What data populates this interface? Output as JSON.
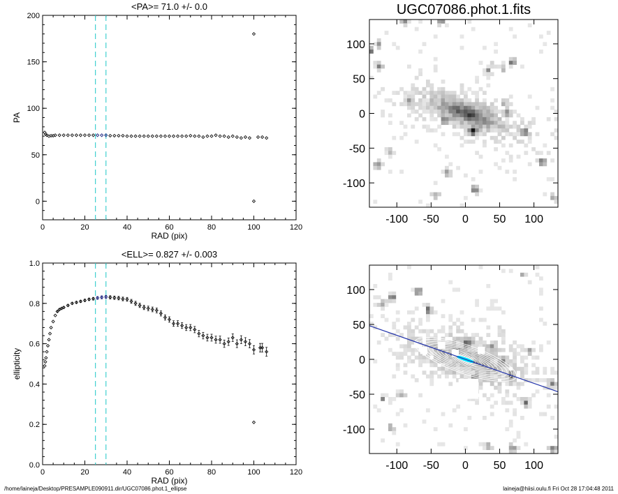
{
  "colors": {
    "axis": "#000000",
    "marker": "#111111",
    "fit_range": "#1a237e",
    "guide": "#40d0d0",
    "major_axis": "#2233aa",
    "ellipse_center": "#00e5ff"
  },
  "footer": {
    "path": "/home/laineja/Desktop/PRESAMPLE090911.dir/UGC07086.phot.1_ellipse",
    "stamp": "laineja@hiisi.oulu.fi  Fri Oct 28 17:04:48 2011"
  },
  "chart_data": [
    {
      "id": "pa-profile",
      "type": "scatter",
      "title": "<PA>=  71.0 +/-   0.0",
      "xlabel": "RAD (pix)",
      "ylabel": "PA",
      "xlim": [
        0,
        120
      ],
      "ylim": [
        -20,
        200
      ],
      "xticks": [
        "0",
        "20",
        "40",
        "60",
        "80",
        "100",
        "120"
      ],
      "yticks": [
        "0",
        "50",
        "100",
        "150",
        "200"
      ],
      "guides_x": [
        25,
        30
      ],
      "fit_range": [
        25,
        30
      ],
      "outliers": [
        {
          "x": 100,
          "y": 180
        },
        {
          "x": 100,
          "y": 0
        }
      ],
      "series": [
        {
          "name": "PA",
          "points": [
            [
              1,
              74
            ],
            [
              1.5,
              72
            ],
            [
              2,
              71
            ],
            [
              3,
              70
            ],
            [
              4,
              70.5
            ],
            [
              5,
              70.5
            ],
            [
              6,
              71
            ],
            [
              8,
              71
            ],
            [
              10,
              71
            ],
            [
              12,
              71
            ],
            [
              14,
              71
            ],
            [
              16,
              71
            ],
            [
              18,
              71
            ],
            [
              20,
              71
            ],
            [
              22,
              71
            ],
            [
              24,
              71
            ],
            [
              26,
              71
            ],
            [
              28,
              71
            ],
            [
              30,
              71
            ],
            [
              32,
              70.5
            ],
            [
              34,
              70.5
            ],
            [
              36,
              70.5
            ],
            [
              38,
              70.5
            ],
            [
              40,
              70
            ],
            [
              42,
              70
            ],
            [
              44,
              70
            ],
            [
              46,
              70
            ],
            [
              48,
              70
            ],
            [
              50,
              70
            ],
            [
              52,
              70
            ],
            [
              54,
              70
            ],
            [
              56,
              70
            ],
            [
              58,
              70
            ],
            [
              60,
              70
            ],
            [
              62,
              70
            ],
            [
              64,
              70
            ],
            [
              66,
              70
            ],
            [
              68,
              70
            ],
            [
              70,
              70.5
            ],
            [
              72,
              70
            ],
            [
              74,
              70
            ],
            [
              76,
              69
            ],
            [
              78,
              70
            ],
            [
              80,
              70
            ],
            [
              82,
              71
            ],
            [
              84,
              70
            ],
            [
              86,
              70
            ],
            [
              88,
              69
            ],
            [
              90,
              70
            ],
            [
              92,
              69
            ],
            [
              94,
              68
            ],
            [
              96,
              69
            ],
            [
              98,
              68
            ],
            [
              102,
              69
            ],
            [
              104,
              69
            ],
            [
              106,
              68
            ]
          ]
        }
      ]
    },
    {
      "id": "ellipticity-profile",
      "type": "scatter",
      "title": "<ELL>= 0.827 +/-  0.003",
      "xlabel": "RAD (pix)",
      "ylabel": "ellipticity",
      "xlim": [
        0,
        120
      ],
      "ylim": [
        0.0,
        1.0
      ],
      "xticks": [
        "0",
        "20",
        "40",
        "60",
        "80",
        "100",
        "120"
      ],
      "yticks": [
        "0.0",
        "0.2",
        "0.4",
        "0.6",
        "0.8",
        "1.0"
      ],
      "guides_x": [
        25,
        30
      ],
      "fit_range": [
        25,
        30
      ],
      "outliers": [
        {
          "x": 100,
          "y": 0.21
        }
      ],
      "series": [
        {
          "name": "ellipticity",
          "points": [
            [
              1,
              0.49
            ],
            [
              1.3,
              0.51
            ],
            [
              1.6,
              0.53
            ],
            [
              2,
              0.56
            ],
            [
              2.5,
              0.59
            ],
            [
              3,
              0.62
            ],
            [
              3.5,
              0.65
            ],
            [
              4,
              0.68
            ],
            [
              5,
              0.71
            ],
            [
              6,
              0.74
            ],
            [
              7,
              0.76
            ],
            [
              8,
              0.77
            ],
            [
              9,
              0.775
            ],
            [
              10,
              0.78
            ],
            [
              12,
              0.79
            ],
            [
              14,
              0.8
            ],
            [
              16,
              0.805
            ],
            [
              18,
              0.81
            ],
            [
              20,
              0.815
            ],
            [
              22,
              0.82
            ],
            [
              24,
              0.823
            ],
            [
              26,
              0.827
            ],
            [
              28,
              0.83
            ],
            [
              30,
              0.832
            ],
            [
              32,
              0.83
            ],
            [
              34,
              0.828
            ],
            [
              36,
              0.826
            ],
            [
              38,
              0.822
            ],
            [
              40,
              0.82
            ],
            [
              42,
              0.81
            ],
            [
              44,
              0.8
            ],
            [
              46,
              0.79
            ],
            [
              48,
              0.78
            ],
            [
              50,
              0.775
            ],
            [
              52,
              0.77
            ],
            [
              54,
              0.765
            ],
            [
              56,
              0.75
            ],
            [
              58,
              0.73
            ],
            [
              60,
              0.72
            ],
            [
              62,
              0.7
            ],
            [
              64,
              0.7
            ],
            [
              66,
              0.69
            ],
            [
              68,
              0.68
            ],
            [
              70,
              0.68
            ],
            [
              72,
              0.67
            ],
            [
              74,
              0.65
            ],
            [
              76,
              0.64
            ],
            [
              78,
              0.63
            ],
            [
              80,
              0.63
            ],
            [
              82,
              0.62
            ],
            [
              84,
              0.62
            ],
            [
              86,
              0.6
            ],
            [
              88,
              0.61
            ],
            [
              90,
              0.63
            ],
            [
              92,
              0.6
            ],
            [
              94,
              0.62
            ],
            [
              96,
              0.61
            ],
            [
              98,
              0.6
            ],
            [
              100,
              0.57
            ],
            [
              103,
              0.58
            ],
            [
              104,
              0.58
            ],
            [
              106,
              0.56
            ]
          ]
        }
      ]
    },
    {
      "id": "image-original",
      "type": "heatmap",
      "title": "UGC07086.phot.1.fits",
      "xlim": [
        -140,
        135
      ],
      "ylim": [
        -135,
        135
      ],
      "xticks": [
        "-100",
        "-50",
        "0",
        "50",
        "100"
      ],
      "yticks": [
        "-100",
        "-50",
        "0",
        "50",
        "100"
      ],
      "galaxy": {
        "center": [
          0,
          0
        ],
        "pa_deg": 71,
        "ellipticity": 0.827
      },
      "star": {
        "x": 8,
        "y": -25
      }
    },
    {
      "id": "image-masked",
      "type": "heatmap",
      "title": "",
      "xlim": [
        -140,
        135
      ],
      "ylim": [
        -135,
        135
      ],
      "xticks": [
        "-100",
        "-50",
        "0",
        "50",
        "100"
      ],
      "yticks": [
        "-100",
        "-50",
        "0",
        "50",
        "100"
      ],
      "galaxy": {
        "center": [
          0,
          0
        ],
        "pa_deg": 71,
        "ellipticity": 0.827
      },
      "ellipse_semi_major": [
        4,
        8,
        12,
        16,
        20,
        25,
        30,
        36,
        42,
        49,
        56,
        63,
        70,
        77
      ]
    }
  ]
}
